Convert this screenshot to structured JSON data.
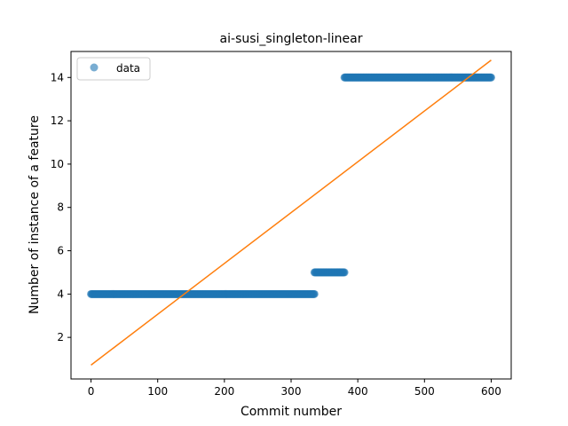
{
  "chart_data": {
    "type": "scatter",
    "title": "ai-susi_singleton-linear",
    "xlabel": "Commit number",
    "ylabel": "Number of instance of a feature",
    "xlim": [
      -30,
      630
    ],
    "ylim": [
      0.08,
      15.2
    ],
    "x_ticks": [
      0,
      100,
      200,
      300,
      400,
      500,
      600
    ],
    "y_ticks": [
      2,
      4,
      6,
      8,
      10,
      12,
      14
    ],
    "grid": false,
    "legend_position": "upper-left",
    "series": [
      {
        "name": "data",
        "kind": "scatter",
        "color": "#1f77b4",
        "segments": [
          {
            "x_start": 0,
            "x_end": 335,
            "y": 4
          },
          {
            "x_start": 335,
            "x_end": 380,
            "y": 5
          },
          {
            "x_start": 380,
            "x_end": 600,
            "y": 14
          }
        ]
      },
      {
        "kind": "line",
        "color": "#ff7f0e",
        "points": [
          [
            0,
            0.72
          ],
          [
            600,
            14.8
          ]
        ]
      }
    ]
  }
}
